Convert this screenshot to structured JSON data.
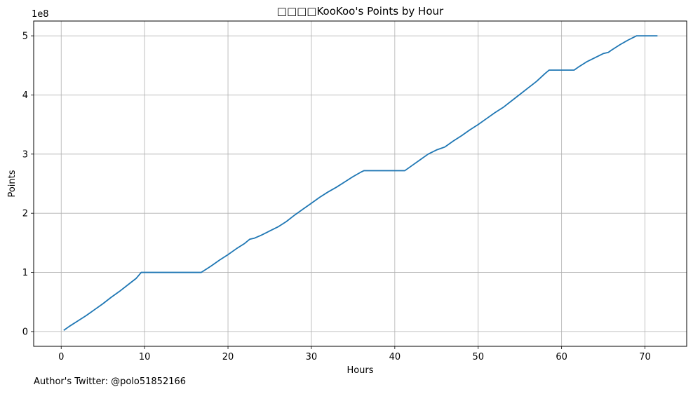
{
  "chart_data": {
    "type": "line",
    "title": "□□□□KooKoo's Points by Hour",
    "xlabel": "Hours",
    "ylabel": "Points",
    "y_offset_label": "1e8",
    "xlim": [
      -3.3,
      75.0
    ],
    "ylim": [
      -0.25,
      5.25
    ],
    "x_ticks": [
      0,
      10,
      20,
      30,
      40,
      50,
      60,
      70
    ],
    "y_ticks": [
      0,
      1,
      2,
      3,
      4,
      5
    ],
    "grid": true,
    "line_color": "#1f77b4",
    "series": [
      {
        "x": [
          0.3,
          1,
          2,
          3,
          4,
          5,
          6,
          7,
          8,
          9,
          9.6,
          10,
          12,
          14,
          16,
          16.8,
          18,
          19,
          20,
          21,
          22,
          22.6,
          23.2,
          24,
          25,
          26,
          27,
          28,
          29,
          30,
          31,
          32,
          33,
          34,
          35,
          36,
          36.3,
          38,
          40,
          41.2,
          42,
          43,
          44,
          45,
          45.6,
          46,
          47,
          48,
          49,
          50,
          51,
          52,
          53,
          54,
          55,
          56,
          57,
          58,
          58.5,
          60,
          61.5,
          62,
          63,
          64,
          65,
          65.6,
          66,
          67,
          68,
          69,
          70,
          71.5
        ],
        "y": [
          0.02,
          0.09,
          0.18,
          0.27,
          0.37,
          0.47,
          0.58,
          0.68,
          0.79,
          0.9,
          1.0,
          1.0,
          1.0,
          1.0,
          1.0,
          1.0,
          1.11,
          1.21,
          1.3,
          1.4,
          1.49,
          1.56,
          1.58,
          1.63,
          1.7,
          1.77,
          1.86,
          1.97,
          2.07,
          2.17,
          2.27,
          2.36,
          2.44,
          2.53,
          2.62,
          2.7,
          2.72,
          2.72,
          2.72,
          2.72,
          2.8,
          2.9,
          3.0,
          3.07,
          3.1,
          3.12,
          3.22,
          3.31,
          3.41,
          3.5,
          3.6,
          3.7,
          3.79,
          3.9,
          4.01,
          4.12,
          4.23,
          4.36,
          4.42,
          4.42,
          4.42,
          4.47,
          4.56,
          4.63,
          4.7,
          4.72,
          4.76,
          4.85,
          4.93,
          5.0,
          5.0,
          5.0
        ]
      }
    ]
  },
  "footer": {
    "author_note": "Author's Twitter: @polo51852166"
  }
}
